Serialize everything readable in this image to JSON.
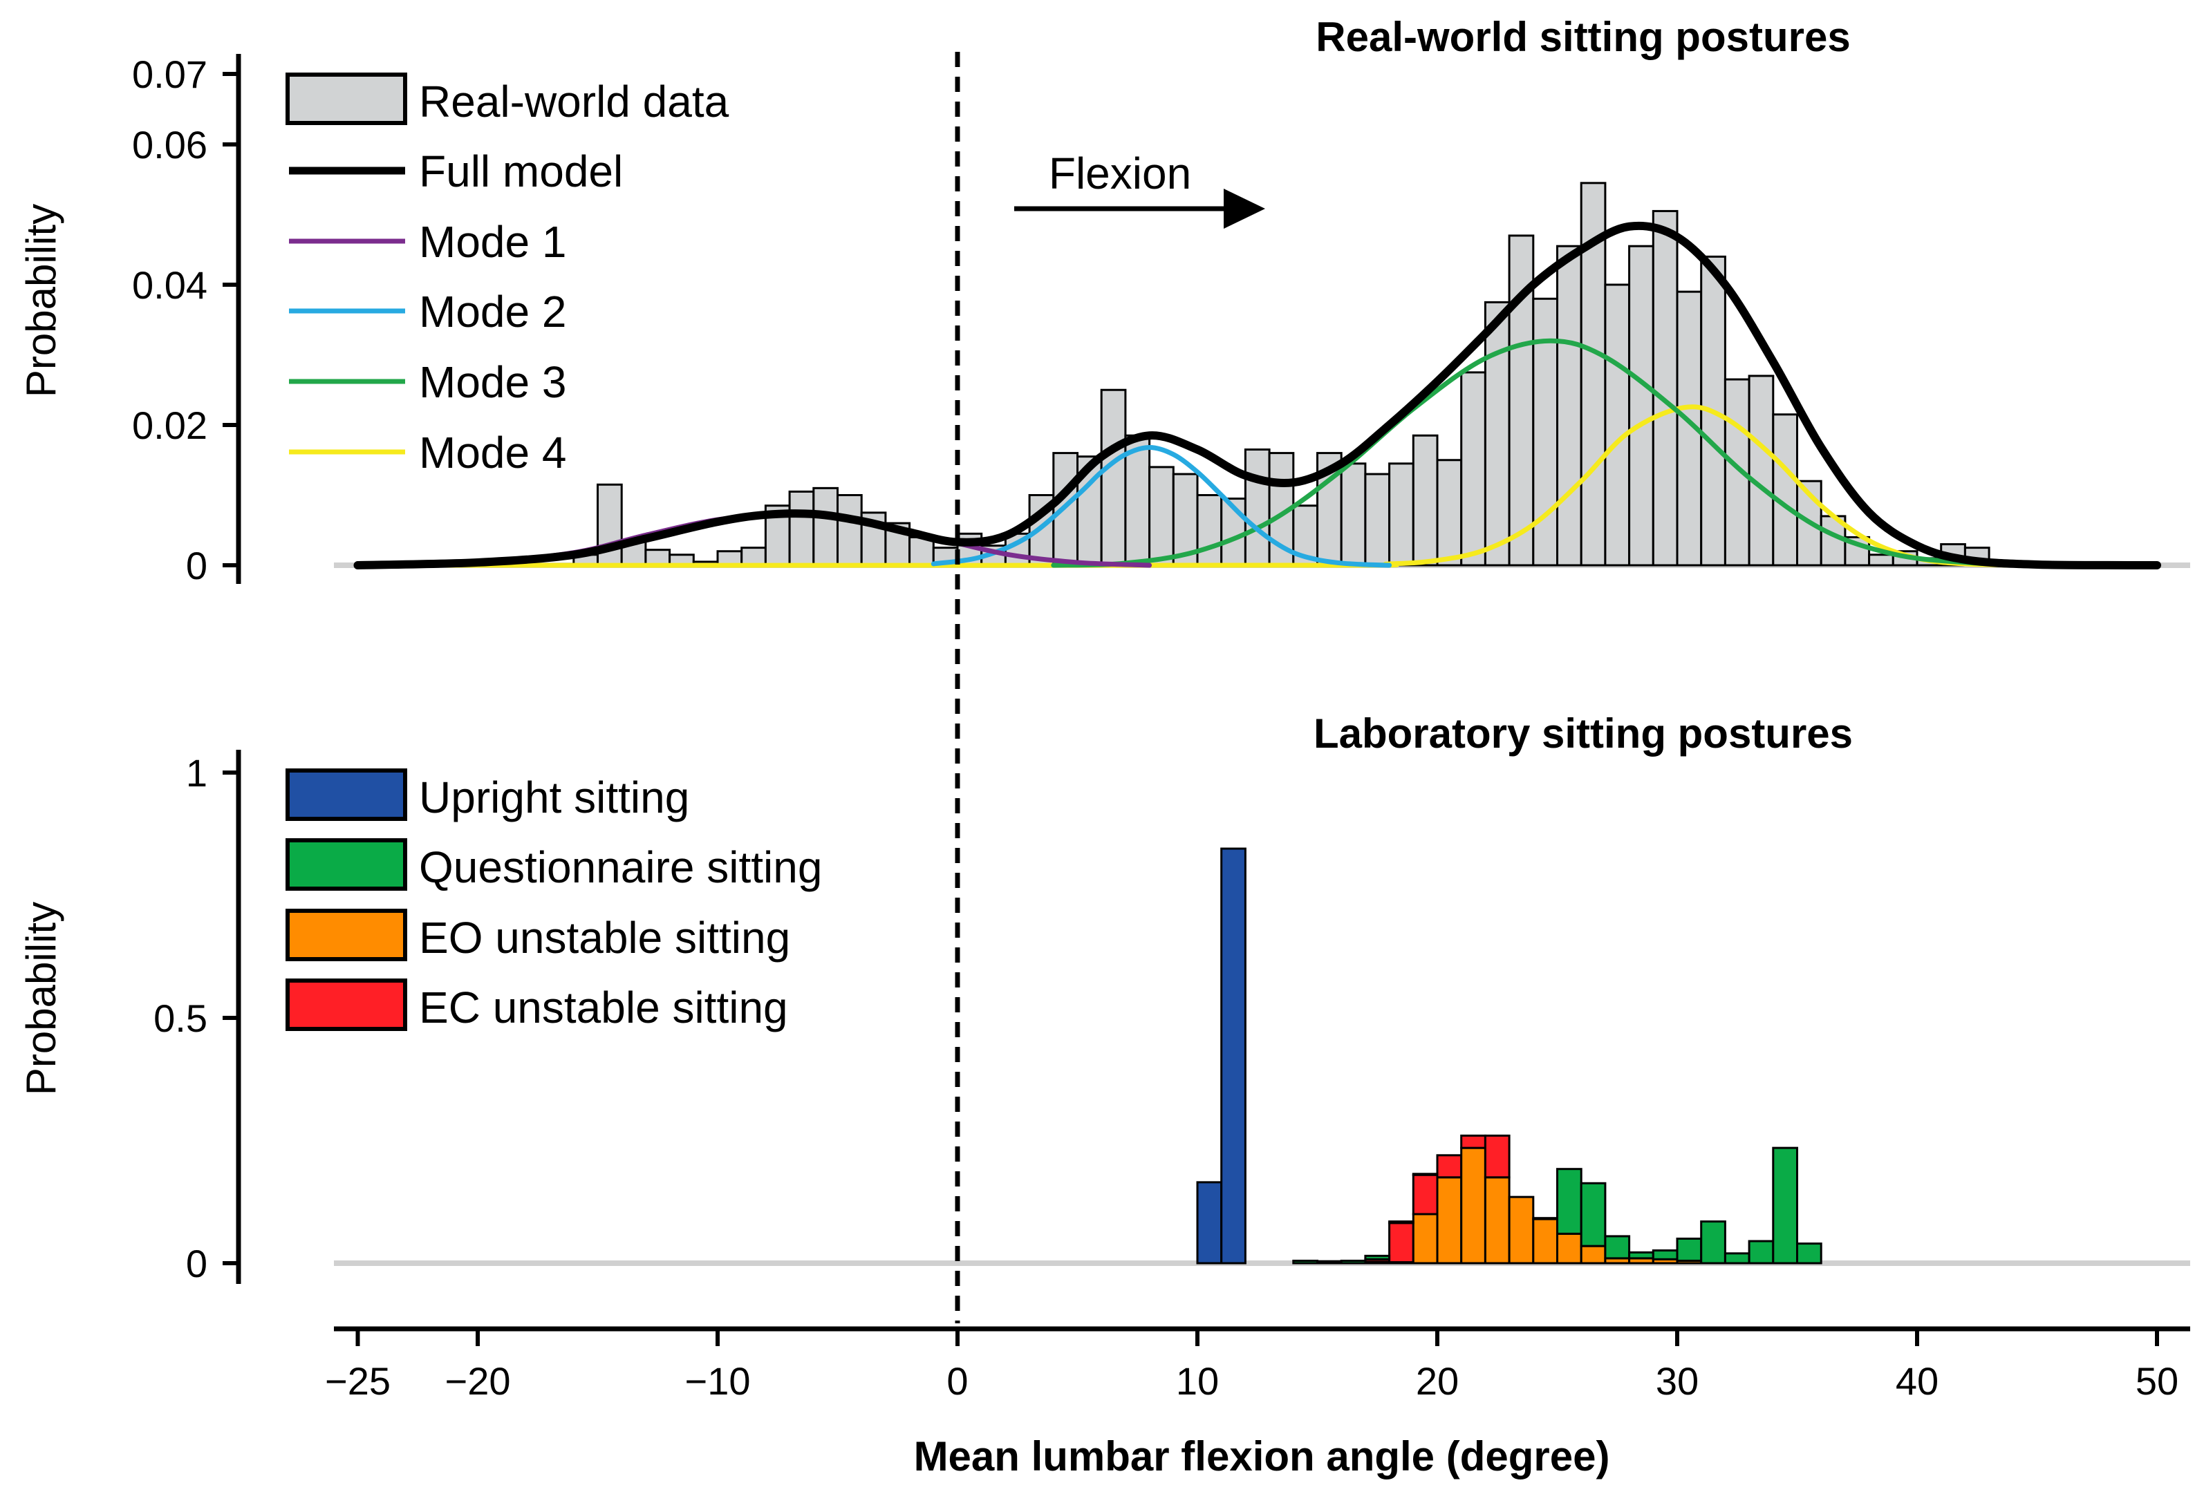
{
  "chart_data": [
    {
      "type": "bar",
      "panel": "top",
      "title": "Real-world sitting postures",
      "ylabel": "Probability",
      "xlabel": "Mean lumbar flexion angle (degree)",
      "xlim": [
        -25,
        50
      ],
      "ylim": [
        0,
        0.07
      ],
      "x_ticks": [
        "−25",
        "−20",
        "−10",
        "0",
        "10",
        "20",
        "30",
        "40",
        "50"
      ],
      "x_tick_values": [
        -25,
        -20,
        -10,
        0,
        10,
        20,
        30,
        40,
        50
      ],
      "y_ticks": [
        "0",
        "0.02",
        "0.04",
        "0.06",
        "0.07"
      ],
      "y_tick_values": [
        0,
        0.02,
        0.04,
        0.06,
        0.07
      ],
      "annotation": {
        "text": "Flexion",
        "x_from": 2.3,
        "x_to": 12.5,
        "y": 0.0505
      },
      "histogram": {
        "name": "Real-world data",
        "color": "#d1d3d4",
        "bin_start": -16,
        "bin_width": 1,
        "values": [
          0.0015,
          0.0115,
          0.0035,
          0.0022,
          0.0015,
          0.0005,
          0.002,
          0.0025,
          0.0085,
          0.0105,
          0.011,
          0.01,
          0.0075,
          0.006,
          0.004,
          0.0025,
          0.0045,
          0.0028,
          0.0045,
          0.01,
          0.016,
          0.0155,
          0.025,
          0.0185,
          0.014,
          0.013,
          0.01,
          0.0095,
          0.0165,
          0.016,
          0.0085,
          0.016,
          0.0145,
          0.013,
          0.0145,
          0.0185,
          0.015,
          0.0275,
          0.0375,
          0.047,
          0.038,
          0.0455,
          0.0545,
          0.04,
          0.0455,
          0.0505,
          0.039,
          0.044,
          0.0265,
          0.027,
          0.0215,
          0.012,
          0.007,
          0.004,
          0.0015,
          0.002,
          0.001,
          0.003,
          0.0025,
          0.0005,
          0.0005
        ]
      },
      "series": [
        {
          "name": "Full model",
          "color": "#000000",
          "x": [
            -25,
            -20,
            -16,
            -13,
            -10,
            -8,
            -6,
            -4,
            -2,
            0,
            2,
            4,
            6,
            8,
            10,
            12,
            14,
            16,
            18,
            20,
            22,
            24,
            26,
            28,
            30,
            32,
            34,
            36,
            38,
            40,
            42,
            45,
            50
          ],
          "values": [
            0,
            0.0004,
            0.0015,
            0.0038,
            0.0062,
            0.0072,
            0.0073,
            0.0063,
            0.0047,
            0.0033,
            0.0042,
            0.0088,
            0.0155,
            0.0185,
            0.0165,
            0.0128,
            0.0118,
            0.0145,
            0.02,
            0.0262,
            0.033,
            0.04,
            0.045,
            0.0483,
            0.0468,
            0.04,
            0.029,
            0.0168,
            0.0075,
            0.0028,
            0.0008,
            0.0001,
            0
          ]
        },
        {
          "name": "Mode 1",
          "color": "#7b2d8e",
          "x": [
            -25,
            -20,
            -16,
            -13,
            -10,
            -7,
            -4,
            -1,
            2,
            5,
            8
          ],
          "values": [
            5e-05,
            0.0004,
            0.0018,
            0.0043,
            0.0065,
            0.0073,
            0.0063,
            0.004,
            0.0016,
            0.0004,
            0
          ]
        },
        {
          "name": "Mode 2",
          "color": "#27aae1",
          "x": [
            -1,
            1,
            3,
            5,
            6,
            7,
            8,
            9,
            10,
            11,
            12,
            13,
            14,
            15,
            16,
            17,
            18
          ],
          "values": [
            0.0002,
            0.0012,
            0.0042,
            0.01,
            0.0133,
            0.0158,
            0.0168,
            0.0158,
            0.0133,
            0.01,
            0.0066,
            0.0038,
            0.0018,
            0.0008,
            0.0003,
            0.0001,
            0
          ]
        },
        {
          "name": "Mode 3",
          "color": "#22a74a",
          "x": [
            4,
            7,
            10,
            13,
            16,
            19,
            22,
            24.7,
            27,
            30,
            33,
            36,
            39,
            42,
            45,
            50
          ],
          "values": [
            0,
            0.0003,
            0.002,
            0.0062,
            0.0135,
            0.0223,
            0.0295,
            0.032,
            0.0297,
            0.022,
            0.0125,
            0.0052,
            0.0016,
            0.0004,
            5e-05,
            0
          ]
        },
        {
          "name": "Mode 4",
          "color": "#f6ea1d",
          "x": [
            -25,
            14,
            18,
            20,
            22,
            24,
            26,
            28,
            30.3,
            32,
            34,
            36,
            38,
            40,
            42,
            45,
            50
          ],
          "values": [
            0,
            0,
            0.0002,
            0.0007,
            0.0022,
            0.0058,
            0.012,
            0.019,
            0.0225,
            0.021,
            0.0155,
            0.0085,
            0.0035,
            0.001,
            0.0002,
            0,
            0
          ]
        }
      ]
    },
    {
      "type": "bar",
      "panel": "bottom",
      "title": "Laboratory sitting postures",
      "ylabel": "Probability",
      "xlabel": "Mean lumbar flexion angle (degree)",
      "xlim": [
        -25,
        50
      ],
      "ylim": [
        0,
        1
      ],
      "y_ticks": [
        "0",
        "0.5",
        "1"
      ],
      "y_tick_values": [
        0,
        0.5,
        1
      ],
      "reference_line": {
        "x": 0,
        "style": "dashed"
      },
      "series": [
        {
          "name": "Upright sitting",
          "color": "#2050a4",
          "bin_width": 1,
          "x": [
            10,
            11
          ],
          "values": [
            0.165,
            0.845
          ]
        },
        {
          "name": "Questionnaire sitting",
          "color": "#0aab47",
          "bin_width": 1,
          "x": [
            14,
            15,
            16,
            17,
            18,
            19,
            20,
            21,
            22,
            23,
            24,
            25,
            26,
            27,
            28,
            29,
            30,
            31,
            32,
            33,
            34,
            35
          ],
          "values": [
            0.005,
            0.004,
            0.005,
            0.007,
            0.003,
            0.002,
            0.0,
            0.0,
            0.0,
            0.0,
            0.002,
            0.132,
            0.128,
            0.045,
            0.012,
            0.018,
            0.045,
            0.085,
            0.02,
            0.045,
            0.235,
            0.04
          ]
        },
        {
          "name": "EO unstable sitting",
          "color": "#ff8c00",
          "bin_width": 1,
          "x": [
            14,
            15,
            16,
            17,
            18,
            19,
            20,
            21,
            22,
            23,
            24,
            25,
            26,
            27,
            28,
            29,
            30
          ],
          "values": [
            0.0,
            0.0,
            0.0,
            0.003,
            0.002,
            0.1,
            0.175,
            0.235,
            0.175,
            0.135,
            0.09,
            0.06,
            0.035,
            0.01,
            0.01,
            0.008,
            0.005
          ]
        },
        {
          "name": "EC unstable sitting",
          "color": "#ff1f26",
          "bin_width": 1,
          "x": [
            14,
            15,
            16,
            17,
            18,
            19,
            20,
            21,
            22,
            23,
            24,
            25,
            26,
            27,
            28,
            29,
            30
          ],
          "values": [
            0.0,
            0.0,
            0.0,
            0.005,
            0.08,
            0.08,
            0.045,
            0.025,
            0.085,
            0.0,
            0.0,
            0.0,
            0.0,
            0.0,
            0.0,
            0.0,
            0.0
          ]
        }
      ]
    }
  ]
}
